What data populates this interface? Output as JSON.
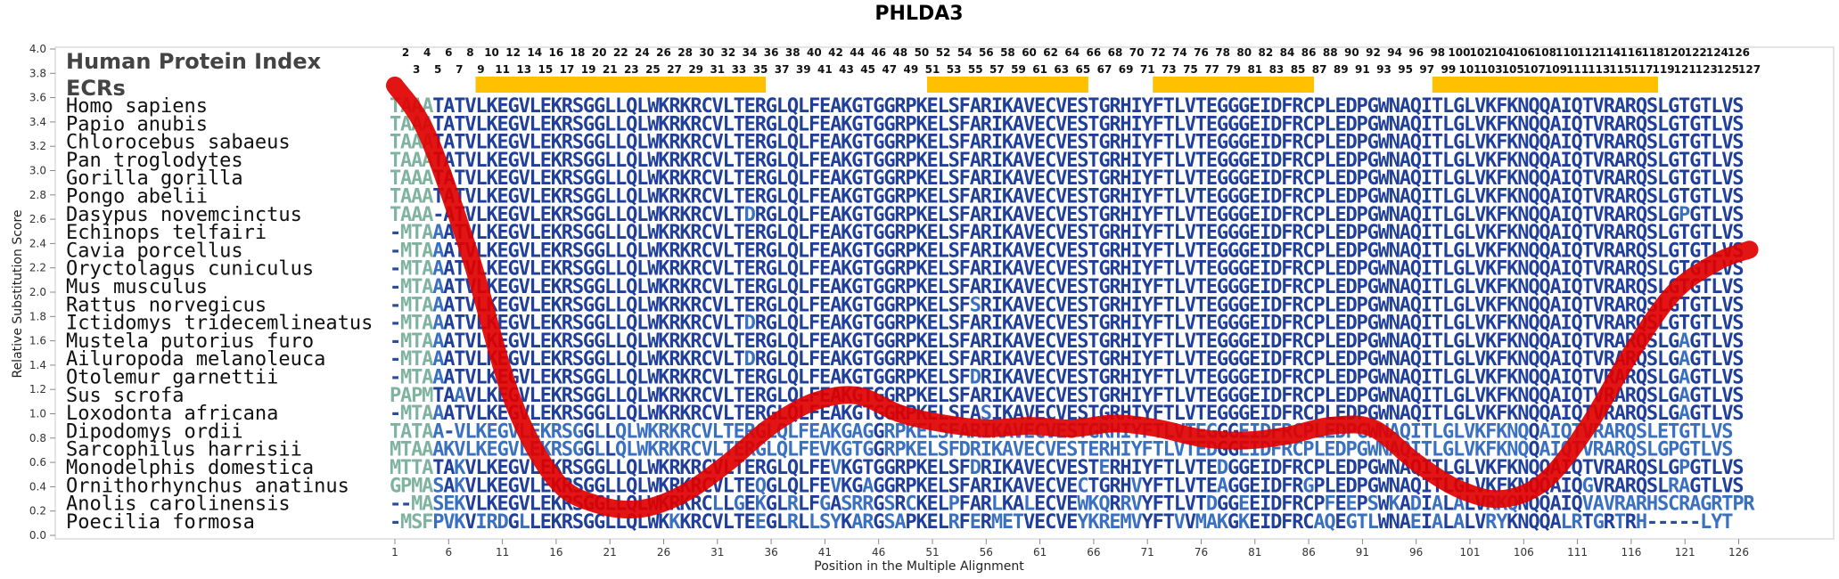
{
  "chart_data": {
    "type": "line",
    "title": "PHLDA3",
    "xlabel": "Position in the Multiple Alignment",
    "ylabel": "Relative Substitution Score",
    "ylim": [
      0.0,
      4.0
    ],
    "yticks": [
      "0.0",
      "0.2",
      "0.4",
      "0.6",
      "0.8",
      "1.0",
      "1.2",
      "1.4",
      "1.6",
      "1.8",
      "2.0",
      "2.2",
      "2.4",
      "2.6",
      "2.8",
      "3.0",
      "3.2",
      "3.4",
      "3.6",
      "3.8",
      "4.0"
    ],
    "xlim": [
      1,
      127
    ],
    "xticks": [
      "1",
      "6",
      "11",
      "16",
      "21",
      "26",
      "31",
      "36",
      "41",
      "46",
      "51",
      "56",
      "61",
      "66",
      "71",
      "76",
      "81",
      "86",
      "91",
      "96",
      "101",
      "106",
      "111",
      "116",
      "121",
      "126"
    ],
    "human_index_label": "Human Protein Index",
    "human_index_top": [
      "2",
      "4",
      "6",
      "8",
      "10",
      "12",
      "14",
      "16",
      "18",
      "20",
      "22",
      "24",
      "26",
      "28",
      "30",
      "32",
      "34",
      "36",
      "38",
      "40",
      "42",
      "44",
      "46",
      "48",
      "50",
      "52",
      "54",
      "56",
      "58",
      "60",
      "62",
      "64",
      "66",
      "68",
      "70",
      "72",
      "74",
      "76",
      "78",
      "80",
      "82",
      "84",
      "86",
      "88",
      "90",
      "92",
      "94",
      "96",
      "98",
      "100",
      "102",
      "104",
      "106",
      "108",
      "110",
      "112",
      "114",
      "116",
      "118",
      "120",
      "122",
      "124",
      "126"
    ],
    "human_index_bottom": [
      "3",
      "5",
      "7",
      "9",
      "11",
      "13",
      "15",
      "17",
      "19",
      "21",
      "23",
      "25",
      "27",
      "29",
      "31",
      "33",
      "35",
      "37",
      "39",
      "41",
      "43",
      "45",
      "47",
      "49",
      "51",
      "53",
      "55",
      "57",
      "59",
      "61",
      "63",
      "65",
      "67",
      "69",
      "71",
      "73",
      "75",
      "77",
      "79",
      "81",
      "83",
      "85",
      "87",
      "89",
      "91",
      "93",
      "95",
      "97",
      "99",
      "101",
      "103",
      "105",
      "107",
      "109",
      "111",
      "113",
      "115",
      "117",
      "119",
      "121",
      "123",
      "125",
      "127"
    ],
    "ecr_label": "ECRs",
    "ecrs": [
      [
        9,
        35
      ],
      [
        51,
        65
      ],
      [
        72,
        86
      ],
      [
        98,
        118
      ]
    ],
    "ecr_color": "#FFC000",
    "curve_color": "#E00000",
    "series": [
      {
        "x": [
          1,
          4,
          8,
          12,
          16,
          20,
          24,
          28,
          32,
          36,
          40,
          44,
          48,
          52,
          56,
          60,
          64,
          68,
          72,
          76,
          80,
          84,
          88,
          92,
          96,
          100,
          104,
          108,
          112,
          116,
          120,
          124,
          127
        ],
        "y": [
          3.7,
          3.3,
          2.3,
          1.1,
          0.45,
          0.25,
          0.22,
          0.35,
          0.6,
          0.9,
          1.1,
          1.15,
          1.0,
          0.92,
          0.88,
          0.9,
          0.88,
          0.92,
          0.88,
          0.8,
          0.78,
          0.82,
          0.9,
          0.88,
          0.6,
          0.38,
          0.3,
          0.45,
          0.9,
          1.5,
          2.0,
          2.25,
          2.35
        ]
      }
    ],
    "species": [
      {
        "name": "Homo sapiens",
        "seq": "TAAATATVLKEGVLEKRSGGLLQLWKRKRCVLTERGLQLFEAKGTGGRPKELSFARIKAVECVESTGRHIYFTLVTEGGGEIDFRCPLEDPGWNAQITLGLVKFKNQQAIQTVRARQSLGTGTLVS"
      },
      {
        "name": "Papio anubis",
        "seq": "TAAATATVLKEGVLEKRSGGLLQLWKRKRCVLTERGLQLFEAKGTGGRPKELSFARIKAVECVESTGRHIYFTLVTEGGGEIDFRCPLEDPGWNAQITLGLVKFKNQQAIQTVRARQSLGTGTLVS"
      },
      {
        "name": "Chlorocebus sabaeus",
        "seq": "TAAATATVLKEGVLEKRSGGLLQLWKRKRCVLTERGLQLFEAKGTGGRPKELSFARIKAVECVESTGRHIYFTLVTEGGGEIDFRCPLEDPGWNAQITLGLVKFKNQQAIQTVRARQSLGTGTLVS"
      },
      {
        "name": "Pan troglodytes",
        "seq": "TAAATATVLKEGVLEKRSGGLLQLWKRKRCVLTERGLQLFEAKGTGGRPKELSFARIKAVECVESTGRHIYFTLVTEGGGEIDFRCPLEDPGWNAQITLGLVKFKNQQAIQTVRARQSLGTGTLVS"
      },
      {
        "name": "Gorilla gorilla",
        "seq": "TAAATATVLKEGVLEKRSGGLLQLWKRKRCVLTERGLQLFEAKGTGGRPKELSFARIKAVECVESTGRHIYFTLVTEGGGEIDFRCPLEDPGWNAQITLGLVKFKNQQAIQTVRARQSLGTGTLVS"
      },
      {
        "name": "Pongo abelii",
        "seq": "TAAATATVLKEGVLEKRSGGLLQLWKRKRCVLTERGLQLFEAKGTGGRPKELSFARIKAVECVESTGRHIYFTLVTEGGGEIDFRCPLEDPGWNAQITLGLVKFKNQQAIQTVRARQSLGTGTLVS"
      },
      {
        "name": "Dasypus novemcinctus",
        "seq": "TAAA-ATVLKEGVLEKRSGGLLQLWKRKRCVLTDRGLQLFEAKGTGGRPKELSFARIKAVECVESTGRHIYFTLVTEGGGEIDFRCPLEDPGWNAQITLGLVKFKNQQAIQTVRARQSLGPGTLVS"
      },
      {
        "name": "Echinops telfairi",
        "seq": "-MTAAATVLKEGVLEKRSGGLLQLWKRKRCVLTERGLQLFEAKGTGGRPKELSFARIKAVECVESTGRHIYFTLVTEGGGEIDFRCPLEDPGWNAQITLGLVKFKNQQAIQTVRARQSLGTGTLVS"
      },
      {
        "name": "Cavia porcellus",
        "seq": "-MTAAATVLKEGVLEKRSGGLLQLWKRKRCVLTERGLQLFEAKGTGGRPKELSFARIKAVECVESTGRHIYFTLVTEGGGEIDFRCPLEDPGWNAQITLGLVKFKNQQAIQTVRARQSLGTGTLVS"
      },
      {
        "name": "Oryctolagus cuniculus",
        "seq": "-MTAAATVLKEGVLEKRSGGLLQLWKRKRCVLTERGLQLFEAKGTGGRPKELSFARIKAVECVESTGRHIYFTLVTEGGGEIDFRCPLEDPGWNAQITLGLVKFKNQQAIQTVRARQSLGTGTLVS"
      },
      {
        "name": "Mus musculus",
        "seq": "-MTAAATVLKEGVLEKRSGGLLQLWKRKRCVLTERGLQLFEAKGTGGRPKELSFARIKAVECVESTGRHIYFTLVTEGGGEIDFRCPLEDPGWNAQITLGLVKFKNQQAIQTVRARQSLGTGTLVS"
      },
      {
        "name": "Rattus norvegicus",
        "seq": "-MTAAATVLKEGVLEKRSGGLLQLWKRKRCVLTERGLQLFEAKGTGGRPKELSFSRIKAVECVESTGRHIYFTLVTEGGGEIDFRCPLEDPGWNAQITLGLVKFKNQQAIQTVRARQSLGTGTLVS"
      },
      {
        "name": "Ictidomys tridecemlineatus",
        "seq": "-MTAAATVLKEGVLEKRSGGLLQLWKRKRCVLTDRGLQLFEAKGTGGRPKELSFARIKAVECVESTGRHIYFTLVTEGGGEIDFRCPLEDPGWNAQITLGLVKFKNQQAIQTVRARQSLGTGTLVS"
      },
      {
        "name": "Mustela putorius furo",
        "seq": "-MTAAATVLKEGVLEKRSGGLLQLWKRKRCVLTERGLQLFEAKGTGGRPKELSFARIKAVECVESTGRHIYFTLVTEGGGEIDFRCPLEDPGWNAQITLGLVKFKNQQAIQTVRARQSLGAGTLVS"
      },
      {
        "name": "Ailuropoda melanoleuca",
        "seq": "-MTAAATVLKEGVLEKRSGGLLQLWKRKRCVLTDRGLQLFEAKGTGGRPKELSFARIKAVECVESTGRHIYFTLVTEGGGEIDFRCPLEDPGWNAQITLGLVKFKNQQAIQTVRARQSLGAGTLVS"
      },
      {
        "name": "Otolemur garnettii",
        "seq": "-MTAAATVLKEGVLEKRSGGLLQLWKRKRCVLTERGLQLFEAKGTGGRPKELSFDRIKAVECVESTGRHIYFTLVTEGGGEIDFRCPLEDPGWNAQITLGLVKFKNQQAIQTVRARQSLGAGTLVS"
      },
      {
        "name": "Sus scrofa",
        "seq": "PAPMTAAVLKEGVLEKRSGGLLQLWKRKRCVLTERGLQLFEAKGTGGRPKELSFARIKAVECVESTGRHIYFTLVTEGGGEIDFRCPLEDPGWNAQITLGLVKFKNQQAIQTVRARQSLGAGTLVS"
      },
      {
        "name": "Loxodonta africana",
        "seq": "-MTAAATVLKEGVLEKRSGGLLQLWKRKRCVLTERGLQLFEAKGTGGRPKELSFASIKAVECVESTGRHIYFTLVTEGGGEIDFRCPLEDPGWNAQITLGLVKFKNQQAIQTVRARQSLGAGTLVS"
      },
      {
        "name": "Dipodomys ordii",
        "seq": "TATAA-VLKEGVLEKRSGGLLQLWKRKRCVLTERGLQLFEAKGAGGRPKELSFARIKAVECVESTGRHIYFTLVTEGGGEIDFRCPLEDPGWNAQITLGLVKFKNQQAIQTVRARQSLETGTLVS"
      },
      {
        "name": "Sarcophilus harrisii",
        "seq": "MTAAAKVLKEGVLEKRSGGLLQLWKRKRCVLTERGLQLFEVKGTGGRPKELSFDRIKAVECVESTERHIYFTLVTEDGGEIDFRCPLEDPGWNAQITLGLVKFKNQQAIQTVRARQSLGPGTLVS"
      },
      {
        "name": "Monodelphis domestica",
        "seq": "MTTATAKVLKEGVLEKRSGGLLQLWKRKRCVLTERGLQLFEVKGTGGRPKELSFDRIKAVECVESTERHIYFTLVTEDGGEIDFRCPLEDPGWNAQITLGLVKFKNQQAIQTVRARQSLGPGTLVS"
      },
      {
        "name": "Ornithorhynchus anatinus",
        "seq": "GPMASAKVLKEGVLEKRSGGLLQLWKRKRCVLTEQGLQLFEVKGAGGRPKELSFARIKAVECVECTGRHVYFTLVTEAGGEIDFRGPLEDPGWNAQITLGLVKFKNQQAIQGVRARQSLRAGTLVS"
      },
      {
        "name": "Anolis carolinensis",
        "seq": "--MASEKVLKEGVLEKRSGGLLQLWKRKRCLLGEKGLRLFGASRRGSRCKELPFARLKALECVEWKQRRVYFTLVTDGGEEIDFRCPFEEPSWKADIALALVRKQNQQAIQVAVRARHSCRAGRTPR"
      },
      {
        "name": "Poecilia formosa",
        "seq": "-MSFPVKVIRDGLLEKRSGGLLQLWKKKRCVLTEEGLRLLSYKARGSAPKELRFERMETVECVEYKREMVYFTVVMAKGKEIDFRCAQEGTLWNAEIALALVRYKNQQALRTGRTRH-----LYT"
      }
    ]
  }
}
